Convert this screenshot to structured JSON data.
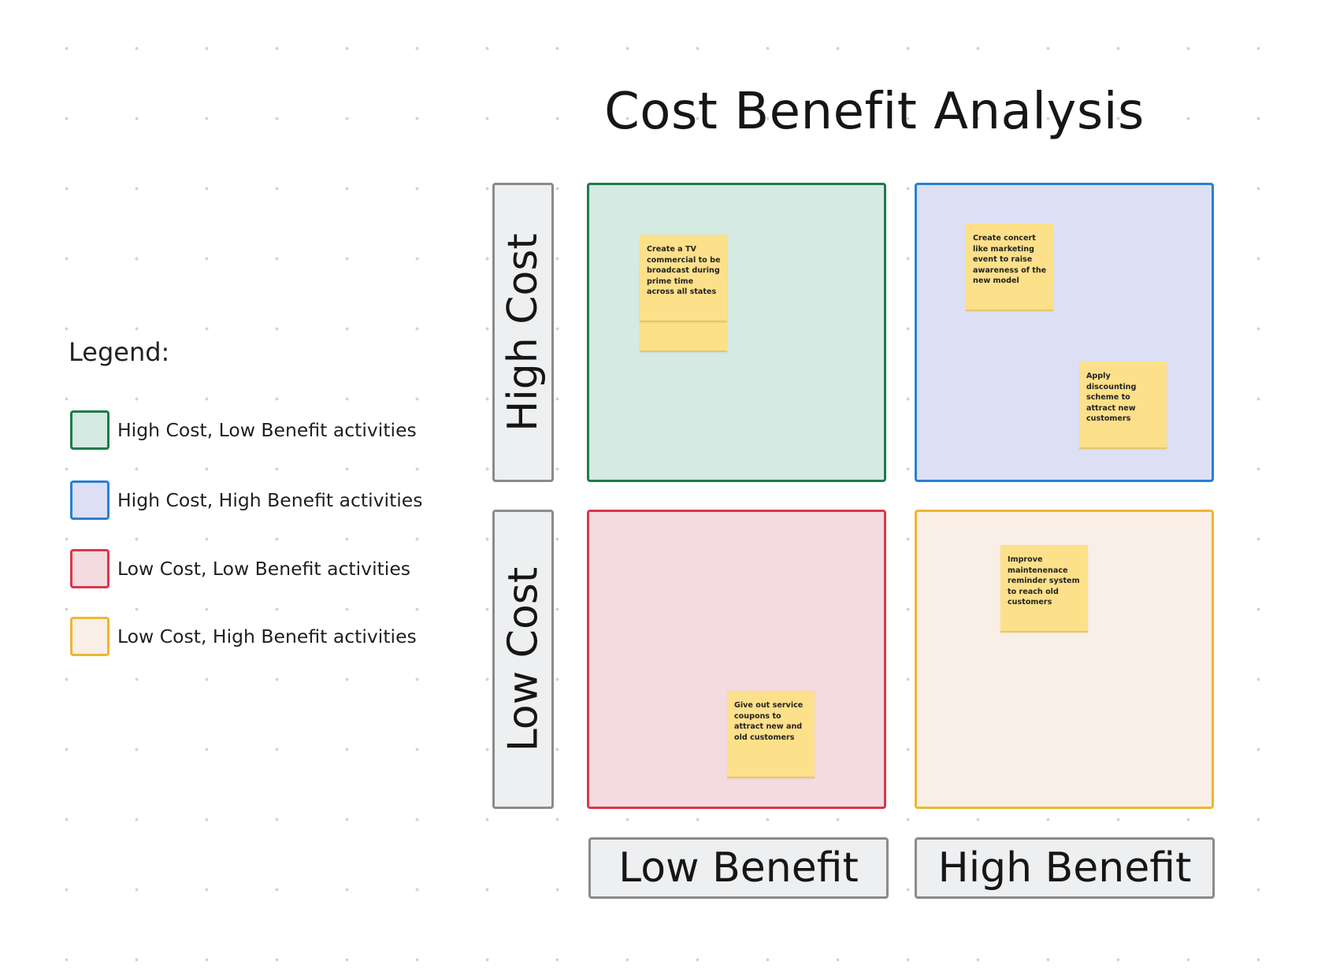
{
  "title": "Cost Benefit Analysis",
  "legend": {
    "heading": "Legend:",
    "items": [
      {
        "label": "High Cost, Low Benefit activities",
        "fill": "#d5eae3",
        "border": "#1f7a4c"
      },
      {
        "label": "High Cost, High Benefit activities",
        "fill": "#dde0f5",
        "border": "#2a7fd4"
      },
      {
        "label": "Low Cost, Low Benefit activities",
        "fill": "#f3dbe0",
        "border": "#d8384a"
      },
      {
        "label": "Low Cost, High Benefit activities",
        "fill": "#f9efe6",
        "border": "#f0b530"
      }
    ]
  },
  "axes": {
    "y_top": "High Cost",
    "y_bottom": "Low Cost",
    "x_left": "Low Benefit",
    "x_right": "High Benefit"
  },
  "quadrants": {
    "high_cost_low_benefit": {
      "fill": "#d5eae3",
      "border": "#1f7a4c",
      "notes": [
        "Create a TV commercial to be broadcast during prime time across all states"
      ]
    },
    "high_cost_high_benefit": {
      "fill": "#dde0f5",
      "border": "#2a7fd4",
      "notes": [
        "Create concert like marketing event to raise awareness of the new model",
        "Apply discounting scheme to attract new customers"
      ]
    },
    "low_cost_low_benefit": {
      "fill": "#f3dbe0",
      "border": "#d8384a",
      "notes": [
        "Give out service coupons to attract new and old customers"
      ]
    },
    "low_cost_high_benefit": {
      "fill": "#f9efe6",
      "border": "#f0b530",
      "notes": [
        "Improve maintenenace reminder system to reach old customers"
      ]
    }
  },
  "sticky_color": "#fde08a"
}
